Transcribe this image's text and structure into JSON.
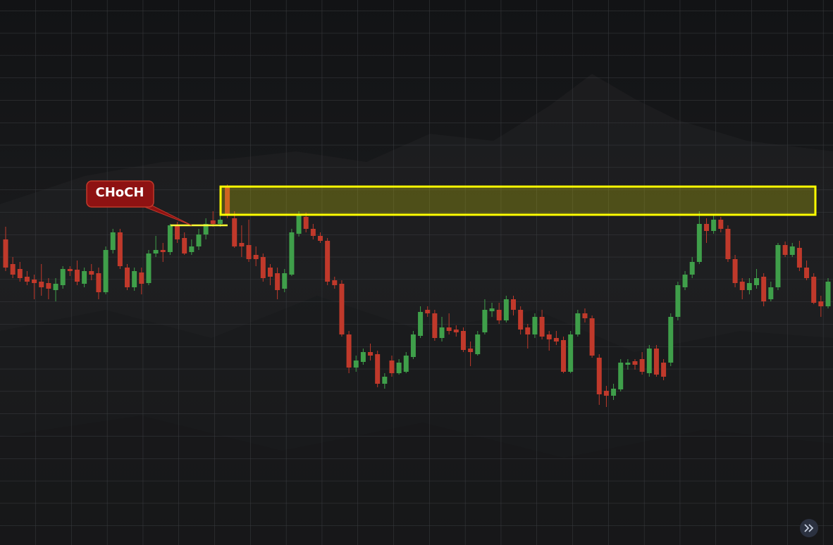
{
  "chart_data": {
    "type": "candlestick",
    "ylim": [
      26,
      800
    ],
    "up_color": "#3f9f4a",
    "down_color": "#c0392b",
    "annotation": {
      "text": "CHoCH",
      "level": 480,
      "color": "#ffff33"
    },
    "zone": {
      "top": 535,
      "bottom": 495,
      "color": "#ffff00"
    },
    "open": [
      460,
      425,
      418,
      407,
      403,
      400,
      398,
      388,
      395,
      418,
      417,
      397,
      415,
      412,
      385,
      445,
      470,
      420,
      392,
      413,
      398,
      440,
      445,
      442,
      480,
      462,
      442,
      450,
      467,
      487,
      482,
      535,
      490,
      455,
      452,
      438,
      435,
      420,
      412,
      390,
      410,
      468,
      492,
      475,
      465,
      458,
      402,
      397,
      325,
      278,
      286,
      300,
      297,
      255,
      288,
      270,
      272,
      293,
      323,
      360,
      355,
      320,
      335,
      332,
      330,
      305,
      297,
      328,
      358,
      360,
      345,
      375,
      360,
      335,
      325,
      350,
      325,
      320,
      317,
      272,
      325,
      355,
      348,
      292,
      245,
      238,
      247,
      282,
      287,
      290,
      270,
      305,
      285,
      285,
      350,
      392,
      410,
      428,
      482,
      472,
      488,
      475,
      432,
      400,
      388,
      395,
      407,
      375,
      392,
      452,
      438,
      448,
      420,
      407,
      372,
      365
    ],
    "close": [
      420,
      410,
      405,
      400,
      398,
      392,
      390,
      397,
      418,
      415,
      400,
      415,
      410,
      385,
      445,
      470,
      422,
      392,
      415,
      397,
      440,
      445,
      442,
      480,
      460,
      440,
      450,
      467,
      482,
      482,
      488,
      495,
      450,
      450,
      432,
      432,
      405,
      407,
      388,
      412,
      470,
      495,
      475,
      465,
      458,
      400,
      395,
      325,
      278,
      288,
      300,
      295,
      255,
      265,
      270,
      285,
      295,
      325,
      357,
      355,
      320,
      335,
      330,
      328,
      303,
      300,
      325,
      360,
      362,
      345,
      375,
      360,
      332,
      325,
      350,
      322,
      318,
      315,
      272,
      325,
      355,
      348,
      295,
      240,
      238,
      248,
      285,
      285,
      282,
      272,
      305,
      268,
      265,
      350,
      395,
      410,
      428,
      482,
      472,
      488,
      475,
      432,
      398,
      388,
      398,
      405,
      372,
      392,
      452,
      438,
      450,
      420,
      405,
      370,
      365,
      400
    ],
    "high": [
      478,
      435,
      428,
      415,
      410,
      425,
      405,
      405,
      422,
      422,
      430,
      420,
      425,
      420,
      450,
      475,
      475,
      425,
      420,
      420,
      445,
      465,
      455,
      482,
      485,
      470,
      460,
      475,
      490,
      500,
      495,
      538,
      500,
      480,
      488,
      450,
      440,
      425,
      420,
      418,
      475,
      500,
      498,
      482,
      470,
      462,
      407,
      402,
      330,
      295,
      305,
      312,
      302,
      270,
      295,
      290,
      300,
      330,
      365,
      365,
      360,
      350,
      355,
      338,
      335,
      315,
      330,
      375,
      370,
      370,
      380,
      380,
      365,
      340,
      355,
      360,
      330,
      330,
      322,
      330,
      360,
      362,
      352,
      297,
      252,
      255,
      290,
      290,
      290,
      300,
      310,
      310,
      290,
      355,
      400,
      415,
      435,
      500,
      490,
      495,
      492,
      480,
      438,
      405,
      405,
      418,
      412,
      400,
      455,
      457,
      455,
      458,
      430,
      412,
      380,
      405
    ],
    "low": [
      415,
      405,
      400,
      395,
      375,
      380,
      375,
      372,
      390,
      408,
      395,
      392,
      402,
      375,
      382,
      440,
      418,
      388,
      387,
      382,
      395,
      435,
      428,
      438,
      455,
      438,
      438,
      445,
      460,
      478,
      478,
      490,
      448,
      435,
      428,
      422,
      400,
      395,
      375,
      385,
      408,
      464,
      470,
      460,
      455,
      395,
      390,
      322,
      270,
      272,
      282,
      288,
      250,
      248,
      265,
      268,
      270,
      290,
      320,
      350,
      316,
      315,
      325,
      322,
      300,
      280,
      295,
      325,
      350,
      340,
      342,
      352,
      325,
      305,
      320,
      318,
      302,
      310,
      270,
      270,
      322,
      342,
      292,
      225,
      222,
      232,
      244,
      275,
      275,
      268,
      265,
      265,
      260,
      280,
      345,
      388,
      405,
      425,
      455,
      468,
      470,
      428,
      392,
      375,
      382,
      390,
      365,
      372,
      388,
      435,
      435,
      415,
      402,
      368,
      350,
      362
    ]
  }
}
